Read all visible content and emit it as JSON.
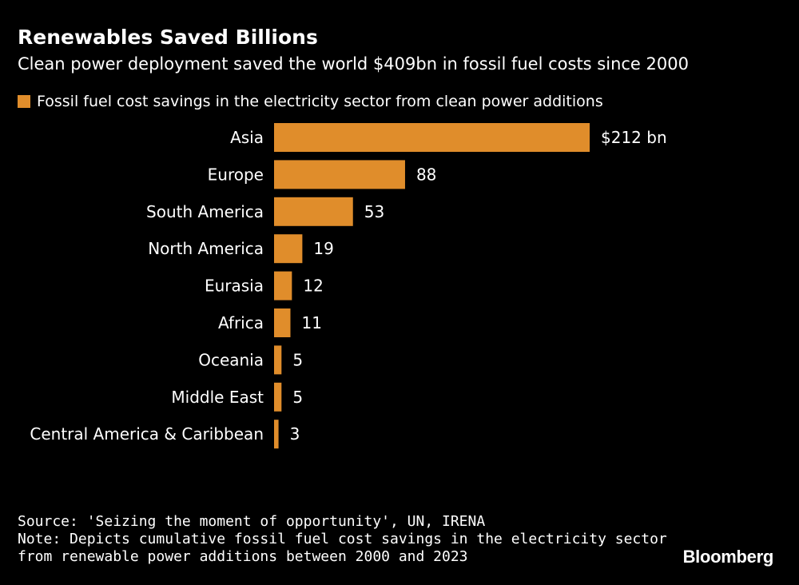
{
  "title": "Renewables Saved Billions",
  "subtitle": "Clean power deployment saved the world $409bn in fossil fuel costs since 2000",
  "legend": {
    "label": "Fossil fuel cost savings in the electricity sector from clean power additions"
  },
  "colors": {
    "bar": "#e08d2b",
    "background": "#000000",
    "text": "#ffffff"
  },
  "footer": {
    "source": "Source: 'Seizing the moment of opportunity', UN, IRENA",
    "note_line1": "Note: Depicts cumulative fossil fuel cost savings in the electricity sector",
    "note_line2": "from renewable power additions between 2000 and 2023"
  },
  "brand": "Bloomberg",
  "chart_data": {
    "type": "bar",
    "orientation": "horizontal",
    "unit": "$ bn",
    "categories": [
      "Asia",
      "Europe",
      "South America",
      "North America",
      "Eurasia",
      "Africa",
      "Oceania",
      "Middle East",
      "Central America & Caribbean"
    ],
    "values": [
      212,
      88,
      53,
      19,
      12,
      11,
      5,
      5,
      3
    ],
    "value_labels": [
      "$212 bn",
      "88",
      "53",
      "19",
      "12",
      "11",
      "5",
      "5",
      "3"
    ],
    "series_name": "Fossil fuel cost savings in the electricity sector from clean power additions",
    "xlim": [
      0,
      212
    ]
  }
}
